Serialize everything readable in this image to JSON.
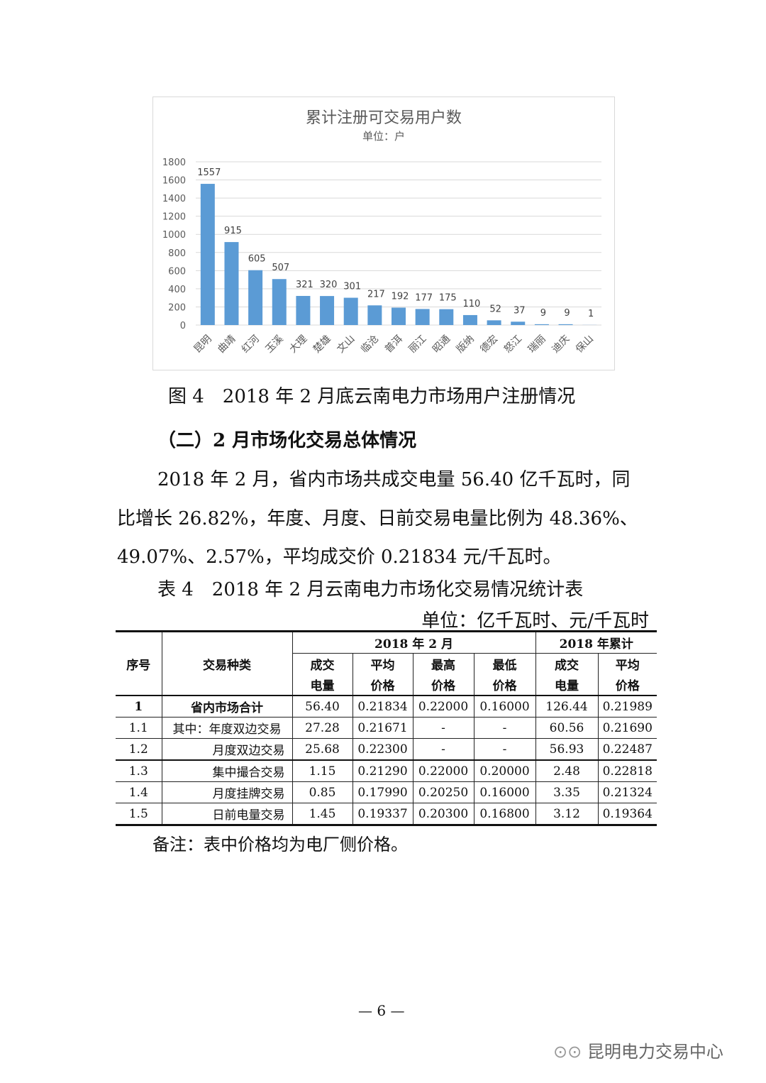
{
  "chart_data": {
    "type": "bar",
    "title": "累计注册可交易用户数",
    "subtitle": "单位：户",
    "categories": [
      "昆明",
      "曲靖",
      "红河",
      "玉溪",
      "大理",
      "楚雄",
      "文山",
      "临沧",
      "普洱",
      "丽江",
      "昭通",
      "版纳",
      "德宏",
      "怒江",
      "瑞丽",
      "迪庆",
      "保山"
    ],
    "values": [
      1557,
      915,
      605,
      507,
      321,
      320,
      301,
      217,
      192,
      177,
      175,
      110,
      52,
      37,
      9,
      9,
      1
    ],
    "ylim": [
      0,
      1800
    ],
    "yticks": [
      0,
      200,
      400,
      600,
      800,
      1000,
      1200,
      1400,
      1600,
      1800
    ],
    "grid": true,
    "bar_color": "#5b9bd5"
  },
  "figure_caption": "图 4　2018 年 2 月底云南电力市场用户注册情况",
  "section_heading": "（二）2 月市场化交易总体情况",
  "paragraph": [
    "2018 年 2 月，省内市场共成交电量 56.40 亿千瓦时，同",
    "比增长 26.82%，年度、月度、日前交易电量比例为 48.36%、",
    "49.07%、2.57%，平均成交价 0.21834 元/千瓦时。"
  ],
  "table_caption": "表 4　2018 年 2 月云南电力市场化交易情况统计表",
  "table_unit": "单位：亿千瓦时、元/千瓦时",
  "table": {
    "h_seq": "序号",
    "h_type": "交易种类",
    "h_feb": "2018 年 2 月",
    "h_cum": "2018 年累计",
    "sub": [
      [
        "成交",
        "电量"
      ],
      [
        "平均",
        "价格"
      ],
      [
        "最高",
        "价格"
      ],
      [
        "最低",
        "价格"
      ],
      [
        "成交",
        "电量"
      ],
      [
        "平均",
        "价格"
      ]
    ],
    "rows": [
      [
        "1",
        "省内市场合计",
        "56.40",
        "0.21834",
        "0.22000",
        "0.16000",
        "126.44",
        "0.21989"
      ],
      [
        "1.1",
        "其中：年度双边交易",
        "27.28",
        "0.21671",
        "-",
        "-",
        "60.56",
        "0.21690"
      ],
      [
        "1.2",
        "月度双边交易",
        "25.68",
        "0.22300",
        "-",
        "-",
        "56.93",
        "0.22487"
      ],
      [
        "1.3",
        "集中撮合交易",
        "1.15",
        "0.21290",
        "0.22000",
        "0.20000",
        "2.48",
        "0.22818"
      ],
      [
        "1.4",
        "月度挂牌交易",
        "0.85",
        "0.17990",
        "0.20250",
        "0.16000",
        "3.35",
        "0.21324"
      ],
      [
        "1.5",
        "日前电量交易",
        "1.45",
        "0.19337",
        "0.20300",
        "0.16800",
        "3.12",
        "0.19364"
      ]
    ]
  },
  "note": "备注：表中价格均为电厂侧价格。",
  "page_number": "— 6 —",
  "watermark": "昆明电力交易中心"
}
